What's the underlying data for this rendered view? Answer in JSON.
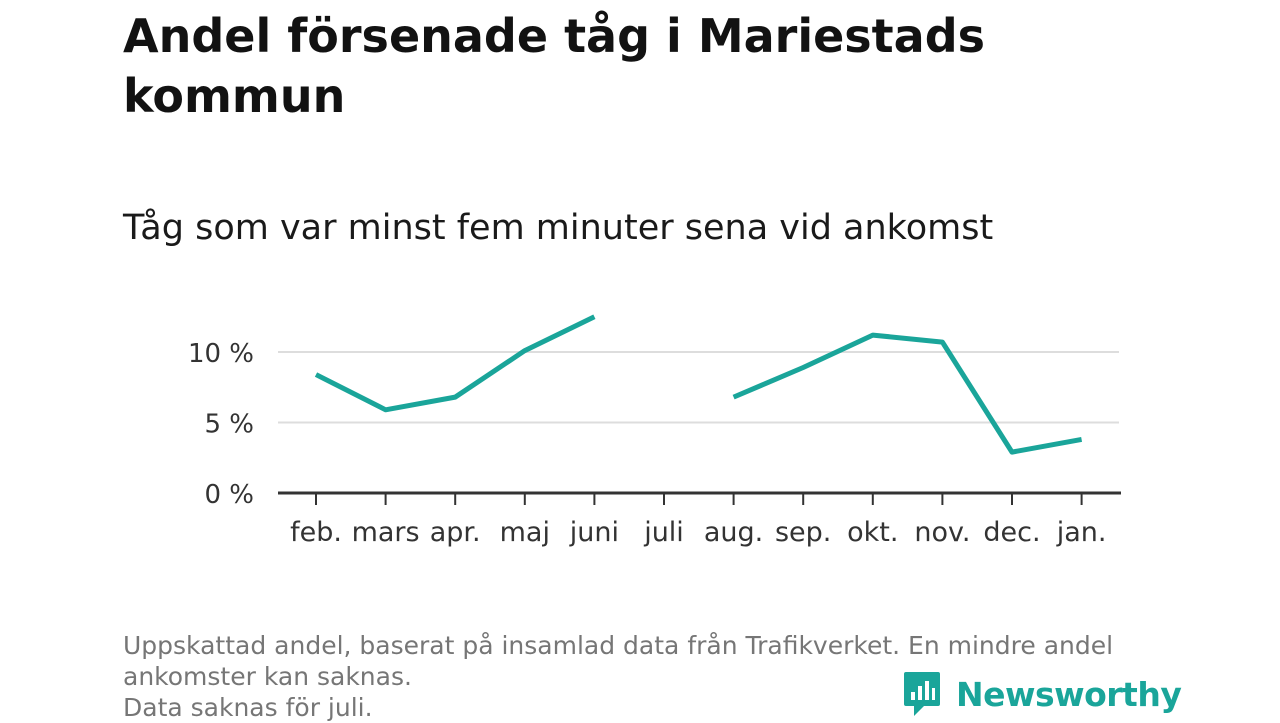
{
  "header": {
    "title": "Andel försenade tåg i Mariestads kommun",
    "subtitle": "Tåg som var minst fem minuter sena vid ankomst"
  },
  "footnote": {
    "line1": "Uppskattad andel, baserat på insamlad data från Trafikverket. En mindre andel",
    "line2": "ankomster kan saknas.",
    "line3": "Data saknas för juli."
  },
  "brand": {
    "name": "Newsworthy",
    "icon": "newsworthy-chart-bubble-icon",
    "color": "#1aa59a"
  },
  "chart_data": {
    "type": "line",
    "categories": [
      "feb.",
      "mars",
      "apr.",
      "maj",
      "juni",
      "juli",
      "aug.",
      "sep.",
      "okt.",
      "nov.",
      "dec.",
      "jan."
    ],
    "series": [
      {
        "values": [
          8.4,
          5.9,
          6.8,
          10.1,
          12.5,
          null,
          6.8,
          8.9,
          11.2,
          10.7,
          2.9,
          3.8
        ],
        "color": "#1aa59a"
      }
    ],
    "yticks": [
      0,
      5,
      10
    ],
    "ytick_labels": [
      "0 %",
      "5 %",
      "10 %"
    ],
    "ylim": [
      0,
      13
    ],
    "grid": true,
    "xlabel": "",
    "ylabel": ""
  }
}
